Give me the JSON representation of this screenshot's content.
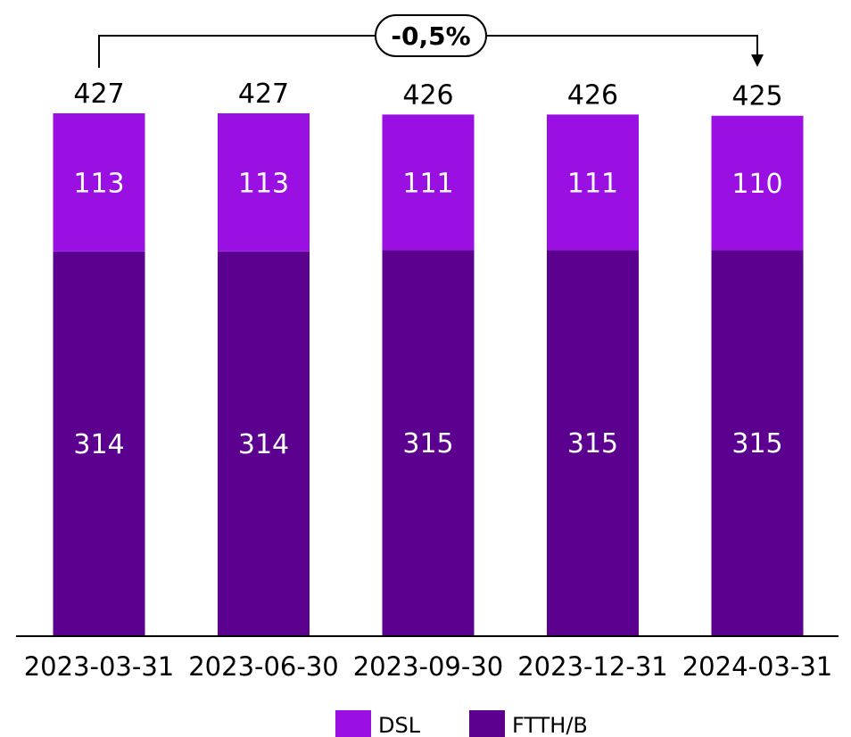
{
  "chart_data": {
    "type": "bar",
    "stacked": true,
    "categories": [
      "2023-03-31",
      "2023-06-30",
      "2023-09-30",
      "2023-12-31",
      "2024-03-31"
    ],
    "series": [
      {
        "name": "FTTH/B",
        "values": [
          314,
          314,
          315,
          315,
          315
        ],
        "color": "#5b008f"
      },
      {
        "name": "DSL",
        "values": [
          113,
          113,
          111,
          111,
          110
        ],
        "color": "#9a10e2"
      }
    ],
    "totals": [
      427,
      427,
      426,
      426,
      425
    ],
    "annotation": {
      "text": "-0,5%",
      "from_category": "2023-03-31",
      "to_category": "2024-03-31"
    },
    "ylim": [
      0,
      427
    ],
    "grid": false,
    "legend": "bottom-center",
    "title": "",
    "xlabel": "",
    "ylabel": ""
  },
  "legend": {
    "items": [
      {
        "label": "DSL",
        "color": "#9a10e2"
      },
      {
        "label": "FTTH/B",
        "color": "#5b008f"
      }
    ]
  }
}
